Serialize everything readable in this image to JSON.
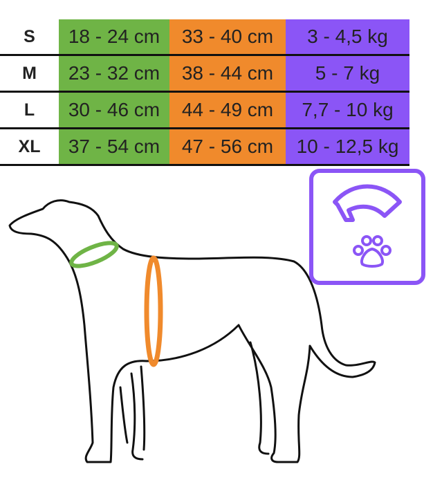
{
  "table": {
    "rows": [
      [
        "S",
        "18 - 24 cm",
        "33 - 40 cm",
        "3 - 4,5 kg"
      ],
      [
        "M",
        "23 - 32 cm",
        "38 - 44 cm",
        "5 - 7 kg"
      ],
      [
        "L",
        "30 - 46 cm",
        "44 - 49 cm",
        "7,7 - 10 kg"
      ],
      [
        "XL",
        "37 - 54 cm",
        "47 - 56 cm",
        "10 - 12,5 kg"
      ]
    ]
  }
}
